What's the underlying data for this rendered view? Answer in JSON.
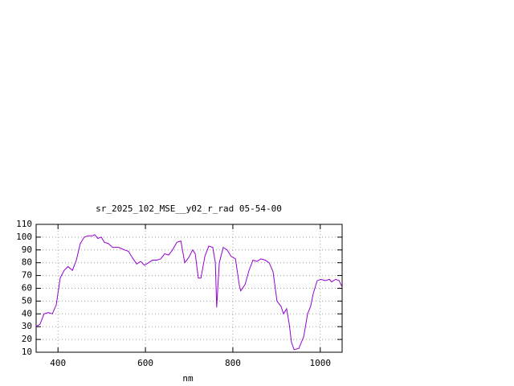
{
  "chart_data": {
    "type": "line",
    "title": "sr_2025_102_MSE__y02_r_rad 05-54-00",
    "x_label": "nm",
    "xlim": [
      350,
      1050
    ],
    "xticks": [
      400,
      600,
      800,
      1000
    ],
    "ylim": [
      10,
      110
    ],
    "yticks": [
      10,
      20,
      30,
      40,
      50,
      60,
      70,
      80,
      90,
      100,
      110
    ],
    "grid": true,
    "x": [
      350,
      359,
      368,
      378,
      387,
      396,
      405,
      414,
      423,
      433,
      442,
      451,
      460,
      469,
      479,
      484,
      491,
      499,
      506,
      515,
      525,
      539,
      552,
      561,
      570,
      580,
      589,
      598,
      607,
      616,
      626,
      635,
      644,
      653,
      662,
      672,
      681,
      690,
      699,
      708,
      714,
      721,
      727,
      736,
      745,
      754,
      760,
      763,
      769,
      778,
      787,
      796,
      806,
      815,
      818,
      828,
      837,
      846,
      855,
      864,
      874,
      883,
      892,
      901,
      910,
      916,
      923,
      929,
      934,
      940,
      951,
      962,
      971,
      978,
      984,
      993,
      1002,
      1011,
      1021,
      1026,
      1035,
      1043,
      1050
    ],
    "series": [
      {
        "color": "#9400d3",
        "values": [
          30,
          32,
          40,
          41,
          40,
          47,
          68,
          74,
          77,
          74,
          82,
          95,
          100,
          101,
          101,
          102,
          99,
          100,
          96,
          95,
          92,
          92,
          90,
          89,
          84,
          79,
          81,
          78,
          80,
          82,
          82,
          83,
          87,
          86,
          90,
          96,
          97,
          80,
          84,
          90,
          87,
          68,
          68,
          85,
          93,
          92,
          80,
          45,
          80,
          92,
          90,
          85,
          83,
          62,
          58,
          63,
          74,
          82,
          81,
          83,
          82,
          80,
          73,
          50,
          46,
          40,
          44,
          32,
          18,
          12,
          13,
          22,
          40,
          46,
          56,
          66,
          67,
          66,
          67,
          65,
          67,
          66,
          61
        ]
      }
    ]
  }
}
